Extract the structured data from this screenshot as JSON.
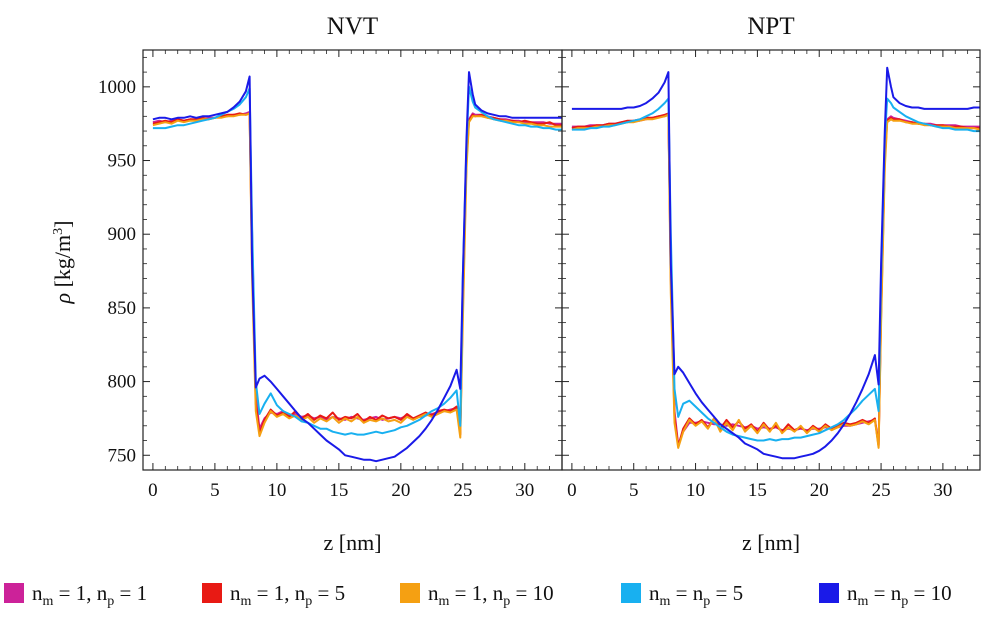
{
  "chart_data": {
    "type": "line",
    "panels": [
      {
        "title": "NVT",
        "x_values": [
          0,
          0.5,
          1,
          1.5,
          2,
          2.5,
          3,
          3.5,
          4,
          4.5,
          5,
          5.5,
          6,
          6.5,
          7,
          7.5,
          7.8,
          8.0,
          8.3,
          8.6,
          9.0,
          9.5,
          10,
          10.5,
          11,
          11.5,
          12,
          12.5,
          13,
          13.5,
          14,
          14.5,
          15,
          15.5,
          16,
          16.5,
          17,
          17.5,
          18,
          18.5,
          19,
          19.5,
          20,
          20.5,
          21,
          21.5,
          22,
          22.5,
          23,
          23.5,
          24,
          24.5,
          24.8,
          25.0,
          25.3,
          25.5,
          25.8,
          26,
          26.5,
          27,
          27.5,
          28,
          28.5,
          29,
          29.5,
          30,
          30.5,
          31,
          31.5,
          32,
          32.5,
          33
        ],
        "series": [
          {
            "name": "n_m = 1, n_p = 1",
            "color": "#cc2299",
            "values": [
              976,
              977,
              976,
              977,
              978,
              977,
              978,
              977,
              978,
              979,
              979,
              980,
              980,
              981,
              981,
              982,
              983,
              900,
              790,
              768,
              775,
              779,
              778,
              780,
              777,
              778,
              776,
              777,
              775,
              776,
              774,
              776,
              775,
              774,
              776,
              775,
              774,
              775,
              776,
              774,
              775,
              776,
              775,
              777,
              775,
              776,
              777,
              778,
              779,
              780,
              781,
              782,
              765,
              860,
              955,
              978,
              982,
              981,
              981,
              980,
              979,
              978,
              978,
              977,
              977,
              976,
              976,
              976,
              976,
              975,
              975,
              975
            ]
          },
          {
            "name": "n_m = 1, n_p = 5",
            "color": "#e81a14",
            "values": [
              975,
              976,
              977,
              976,
              978,
              977,
              978,
              978,
              979,
              978,
              979,
              980,
              981,
              981,
              982,
              981,
              982,
              880,
              785,
              765,
              774,
              781,
              777,
              779,
              776,
              780,
              775,
              778,
              774,
              777,
              775,
              779,
              774,
              776,
              775,
              778,
              773,
              776,
              774,
              777,
              775,
              776,
              774,
              778,
              775,
              777,
              779,
              777,
              780,
              781,
              780,
              783,
              764,
              850,
              950,
              977,
              981,
              980,
              981,
              979,
              979,
              978,
              977,
              977,
              976,
              977,
              976,
              975,
              975,
              976,
              974,
              974
            ]
          },
          {
            "name": "n_m = 1, n_p = 10",
            "color": "#f5a012",
            "values": [
              974,
              975,
              976,
              975,
              977,
              976,
              977,
              977,
              978,
              978,
              979,
              979,
              980,
              980,
              981,
              981,
              982,
              870,
              780,
              763,
              772,
              780,
              776,
              778,
              775,
              777,
              774,
              776,
              772,
              775,
              773,
              776,
              772,
              775,
              773,
              776,
              772,
              774,
              773,
              775,
              773,
              774,
              772,
              776,
              774,
              776,
              778,
              776,
              778,
              780,
              779,
              781,
              762,
              840,
              945,
              976,
              980,
              980,
              980,
              979,
              978,
              977,
              977,
              976,
              976,
              975,
              975,
              974,
              974,
              973,
              973,
              973
            ]
          },
          {
            "name": "n_m = n_p = 5",
            "color": "#18b0f0",
            "values": [
              972,
              972,
              972,
              973,
              974,
              974,
              975,
              976,
              977,
              978,
              979,
              981,
              983,
              985,
              988,
              993,
              999,
              905,
              800,
              778,
              785,
              792,
              784,
              780,
              778,
              776,
              773,
              772,
              770,
              768,
              768,
              766,
              765,
              764,
              765,
              764,
              764,
              765,
              766,
              765,
              766,
              767,
              769,
              770,
              772,
              774,
              777,
              780,
              782,
              785,
              789,
              794,
              770,
              870,
              960,
              1000,
              990,
              986,
              983,
              980,
              978,
              977,
              976,
              975,
              974,
              974,
              973,
              973,
              972,
              972,
              971,
              971
            ]
          },
          {
            "name": "n_m = n_p = 10",
            "color": "#1a1ae8",
            "values": [
              978,
              979,
              979,
              978,
              979,
              979,
              980,
              979,
              980,
              980,
              981,
              982,
              983,
              986,
              990,
              997,
              1007,
              880,
              796,
              802,
              804,
              800,
              795,
              790,
              785,
              780,
              775,
              772,
              768,
              764,
              760,
              757,
              754,
              750,
              749,
              748,
              747,
              747,
              746,
              747,
              748,
              749,
              752,
              755,
              759,
              763,
              768,
              774,
              781,
              789,
              797,
              808,
              795,
              870,
              965,
              1010,
              995,
              988,
              984,
              982,
              981,
              980,
              980,
              979,
              979,
              979,
              979,
              979,
              979,
              979,
              979,
              979
            ]
          }
        ]
      },
      {
        "title": "NPT",
        "x_values": [
          0,
          0.5,
          1,
          1.5,
          2,
          2.5,
          3,
          3.5,
          4,
          4.5,
          5,
          5.5,
          6,
          6.5,
          7,
          7.5,
          7.8,
          8.0,
          8.3,
          8.6,
          9.0,
          9.5,
          10,
          10.5,
          11,
          11.5,
          12,
          12.5,
          13,
          13.5,
          14,
          14.5,
          15,
          15.5,
          16,
          16.5,
          17,
          17.5,
          18,
          18.5,
          19,
          19.5,
          20,
          20.5,
          21,
          21.5,
          22,
          22.5,
          23,
          23.5,
          24,
          24.5,
          24.8,
          25.0,
          25.3,
          25.5,
          25.8,
          26,
          26.5,
          27,
          27.5,
          28,
          28.5,
          29,
          29.5,
          30,
          30.5,
          31,
          31.5,
          32,
          32.5,
          33
        ],
        "series": [
          {
            "name": "n_m = 1, n_p = 1",
            "color": "#cc2299",
            "values": [
              973,
              973,
              973,
              974,
              974,
              974,
              975,
              975,
              976,
              976,
              977,
              977,
              978,
              979,
              980,
              980,
              981,
              880,
              780,
              757,
              766,
              772,
              772,
              773,
              772,
              771,
              771,
              770,
              771,
              770,
              769,
              770,
              768,
              769,
              768,
              769,
              767,
              768,
              767,
              768,
              767,
              768,
              768,
              769,
              768,
              769,
              770,
              770,
              771,
              772,
              773,
              774,
              757,
              850,
              955,
              978,
              980,
              979,
              978,
              977,
              976,
              975,
              975,
              975,
              974,
              974,
              974,
              974,
              973,
              973,
              973,
              973
            ]
          },
          {
            "name": "n_m = 1, n_p = 5",
            "color": "#e81a14",
            "values": [
              972,
              973,
              973,
              973,
              974,
              974,
              975,
              975,
              976,
              977,
              977,
              978,
              979,
              979,
              980,
              981,
              982,
              870,
              776,
              756,
              768,
              775,
              771,
              774,
              769,
              775,
              768,
              774,
              769,
              773,
              768,
              771,
              766,
              772,
              767,
              770,
              766,
              771,
              767,
              769,
              766,
              770,
              767,
              771,
              768,
              770,
              772,
              771,
              772,
              774,
              772,
              775,
              756,
              845,
              950,
              977,
              979,
              978,
              978,
              976,
              976,
              975,
              975,
              974,
              974,
              974,
              973,
              973,
              973,
              972,
              972,
              972
            ]
          },
          {
            "name": "n_m = 1, n_p = 10",
            "color": "#f5a012",
            "values": [
              971,
              972,
              972,
              972,
              973,
              973,
              974,
              974,
              975,
              976,
              976,
              977,
              978,
              978,
              979,
              980,
              981,
              860,
              772,
              755,
              766,
              774,
              770,
              773,
              768,
              775,
              766,
              772,
              767,
              774,
              766,
              770,
              765,
              771,
              766,
              772,
              765,
              769,
              766,
              770,
              765,
              769,
              766,
              770,
              767,
              769,
              771,
              770,
              771,
              773,
              771,
              774,
              755,
              840,
              945,
              976,
              978,
              977,
              977,
              976,
              975,
              975,
              974,
              974,
              973,
              973,
              973,
              972,
              972,
              972,
              972,
              971
            ]
          },
          {
            "name": "n_m = n_p = 5",
            "color": "#18b0f0",
            "values": [
              971,
              971,
              971,
              972,
              972,
              973,
              973,
              974,
              975,
              976,
              977,
              978,
              980,
              982,
              985,
              989,
              992,
              900,
              795,
              776,
              785,
              787,
              783,
              779,
              775,
              772,
              769,
              766,
              764,
              763,
              762,
              761,
              760,
              760,
              761,
              760,
              761,
              761,
              762,
              762,
              763,
              764,
              765,
              767,
              769,
              771,
              774,
              778,
              782,
              787,
              791,
              795,
              780,
              870,
              965,
              992,
              989,
              986,
              983,
              980,
              978,
              976,
              975,
              974,
              973,
              972,
              972,
              971,
              971,
              971,
              970,
              970
            ]
          },
          {
            "name": "n_m = n_p = 10",
            "color": "#1a1ae8",
            "values": [
              985,
              985,
              985,
              985,
              985,
              985,
              985,
              985,
              985,
              986,
              986,
              987,
              989,
              992,
              996,
              1003,
              1010,
              880,
              805,
              810,
              806,
              799,
              792,
              786,
              781,
              776,
              771,
              768,
              765,
              762,
              758,
              756,
              754,
              751,
              750,
              749,
              748,
              748,
              748,
              749,
              750,
              751,
              753,
              756,
              760,
              765,
              771,
              778,
              786,
              795,
              805,
              818,
              798,
              880,
              970,
              1013,
              1000,
              993,
              989,
              987,
              986,
              986,
              985,
              985,
              985,
              985,
              985,
              985,
              985,
              985,
              986,
              986
            ]
          }
        ]
      }
    ],
    "xlabel": "z [nm]",
    "ylabel": "ρ [kg/m³]",
    "xlim": [
      -0.8,
      33
    ],
    "ylim": [
      740,
      1025
    ],
    "xticks": [
      0,
      5,
      10,
      15,
      20,
      25,
      30
    ],
    "yticks": [
      750,
      800,
      850,
      900,
      950,
      1000
    ],
    "ylabel_parts": {
      "rho": "ρ",
      "unit_open": "[kg/m",
      "sup": "3",
      "unit_close": "]"
    },
    "legend": {
      "placement": "bottom",
      "entries": [
        {
          "color": "#cc2299",
          "parts": [
            "n",
            "m",
            " = 1, n",
            "p",
            " = 1"
          ]
        },
        {
          "color": "#e81a14",
          "parts": [
            "n",
            "m",
            " = 1, n",
            "p",
            " = 5"
          ]
        },
        {
          "color": "#f5a012",
          "parts": [
            "n",
            "m",
            " = 1, n",
            "p",
            " = 10"
          ]
        },
        {
          "color": "#18b0f0",
          "parts": [
            "n",
            "m",
            " = n",
            "p",
            " = 5"
          ]
        },
        {
          "color": "#1a1ae8",
          "parts": [
            "n",
            "m",
            " = n",
            "p",
            " = 10"
          ]
        }
      ]
    },
    "grid": false
  }
}
